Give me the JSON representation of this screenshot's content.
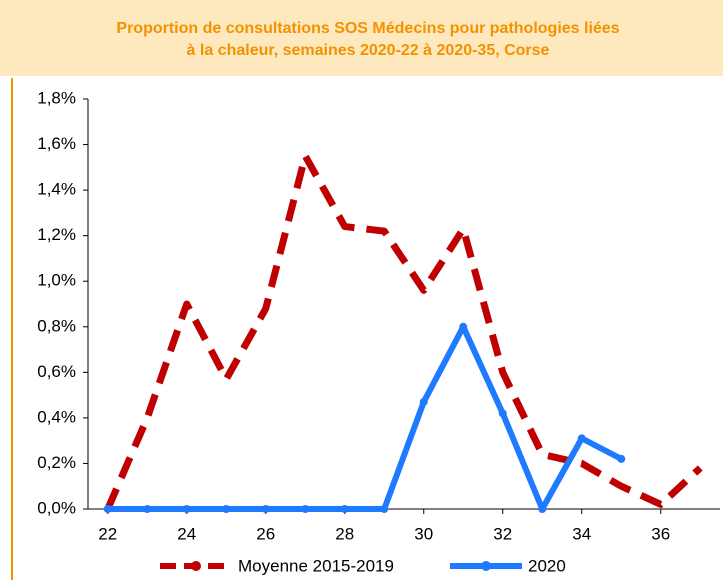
{
  "chart_data": {
    "type": "line",
    "title": [
      "Proportion de consultations SOS Médecins pour pathologies liées",
      "à la chaleur, semaines 2020-22 à 2020-35, Corse"
    ],
    "x": [
      22,
      23,
      24,
      25,
      26,
      27,
      28,
      29,
      30,
      31,
      32,
      33,
      34,
      35,
      36,
      37
    ],
    "series": [
      {
        "name": "Moyenne 2015-2019",
        "color": "#c00000",
        "dashed": true,
        "values": [
          0.0,
          0.4,
          0.9,
          0.57,
          0.88,
          1.55,
          1.24,
          1.22,
          0.96,
          1.23,
          0.6,
          0.24,
          0.2,
          0.1,
          0.02,
          0.18
        ]
      },
      {
        "name": "2020",
        "color": "#1e7bff",
        "dashed": false,
        "values": [
          0,
          0,
          0,
          0,
          0,
          0,
          0,
          0,
          0.47,
          0.8,
          0.42,
          0,
          0.31,
          0.22,
          null,
          null
        ]
      }
    ],
    "xlim": [
      21.5,
      37.5
    ],
    "xticks": [
      22,
      24,
      26,
      28,
      30,
      32,
      34,
      36
    ],
    "ylim": [
      0,
      1.8
    ],
    "yticks": [
      {
        "value": 0,
        "label": "0,0%"
      },
      {
        "value": 0.2,
        "label": "0,2%"
      },
      {
        "value": 0.4,
        "label": "0,4%"
      },
      {
        "value": 0.6,
        "label": "0,6%"
      },
      {
        "value": 0.8,
        "label": "0,8%"
      },
      {
        "value": 1.0,
        "label": "1,0%"
      },
      {
        "value": 1.2,
        "label": "1,2%"
      },
      {
        "value": 1.4,
        "label": "1,4%"
      },
      {
        "value": 1.6,
        "label": "1,6%"
      },
      {
        "value": 1.8,
        "label": "1,8%"
      }
    ],
    "grid": false
  }
}
